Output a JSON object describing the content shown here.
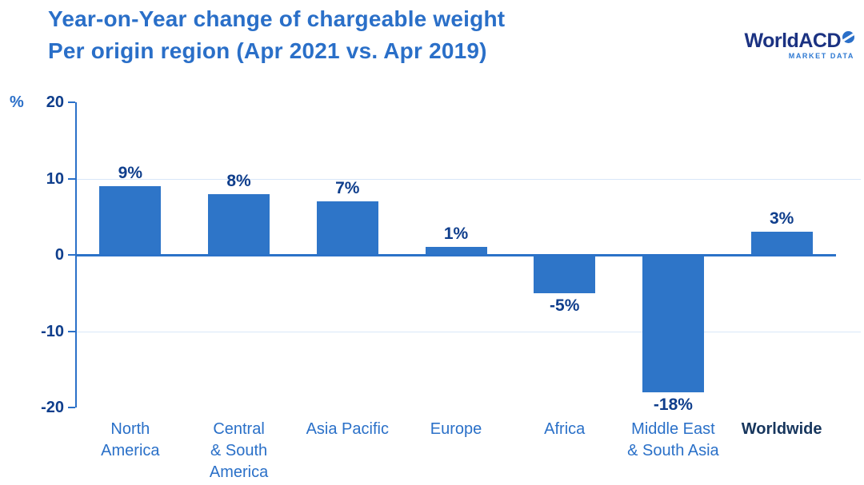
{
  "chart_data": {
    "type": "bar",
    "title_line1": "Year-on-Year change of chargeable weight",
    "title_line2": "Per origin region (Apr 2021 vs. Apr 2019)",
    "unit_label": "%",
    "categories": [
      "North\nAmerica",
      "Central\n& South\nAmerica",
      "Asia Pacific",
      "Europe",
      "Africa",
      "Middle East\n& South Asia",
      "Worldwide"
    ],
    "values": [
      9,
      8,
      7,
      1,
      -5,
      -18,
      3
    ],
    "bar_labels": [
      "9%",
      "8%",
      "7%",
      "1%",
      "-5%",
      "-18%",
      "3%"
    ],
    "emphasized_category_index": 6,
    "y_ticks": [
      20,
      10,
      0,
      -10,
      -20
    ],
    "ylim": [
      -20,
      20
    ],
    "grid_lines_at": [
      10,
      -10
    ],
    "legend": "none",
    "xlabel": "",
    "ylabel": "%",
    "colors": {
      "bar": "#2e75c8",
      "axis": "#2a70c8",
      "value_label": "#0f3e8c",
      "category_label": "#2a70c8",
      "emphasized_label": "#17365d",
      "gridline": "#d9e7f8",
      "title": "#2a6fc8"
    }
  },
  "logo": {
    "name": "WorldACD",
    "subtitle": "MARKET DATA"
  }
}
